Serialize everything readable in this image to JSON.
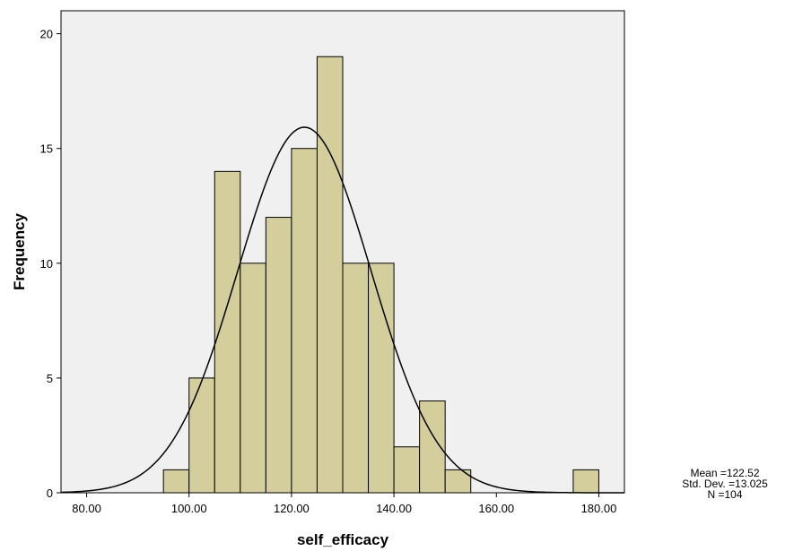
{
  "chart_data": {
    "type": "bar",
    "variant": "histogram",
    "xlabel": "self_efficacy",
    "ylabel": "Frequency",
    "xlim": [
      75,
      185
    ],
    "ylim": [
      0,
      21
    ],
    "xticks": [
      "80.00",
      "100.00",
      "120.00",
      "140.00",
      "160.00",
      "180.00"
    ],
    "yticks": [
      "0",
      "5",
      "10",
      "15",
      "20"
    ],
    "bin_width": 5,
    "bins": [
      {
        "start": 95,
        "end": 100,
        "count": 1
      },
      {
        "start": 100,
        "end": 105,
        "count": 5
      },
      {
        "start": 105,
        "end": 110,
        "count": 14
      },
      {
        "start": 110,
        "end": 115,
        "count": 10
      },
      {
        "start": 115,
        "end": 120,
        "count": 12
      },
      {
        "start": 120,
        "end": 125,
        "count": 15
      },
      {
        "start": 125,
        "end": 130,
        "count": 19
      },
      {
        "start": 130,
        "end": 135,
        "count": 10
      },
      {
        "start": 135,
        "end": 140,
        "count": 10
      },
      {
        "start": 140,
        "end": 145,
        "count": 2
      },
      {
        "start": 145,
        "end": 150,
        "count": 4
      },
      {
        "start": 150,
        "end": 155,
        "count": 1
      },
      {
        "start": 175,
        "end": 180,
        "count": 1
      }
    ],
    "normal_curve": {
      "mean": 122.52,
      "sd": 13.025,
      "n": 104
    },
    "grid": false,
    "colors": {
      "bar_fill": "#d3ce9b",
      "bar_stroke": "#000000",
      "plot_bg": "#f0f0f0",
      "curve": "#000000"
    }
  },
  "stats": {
    "mean_label": "Mean =122.52",
    "sd_label": "Std. Dev. =13.025",
    "n_label": "N =104"
  }
}
